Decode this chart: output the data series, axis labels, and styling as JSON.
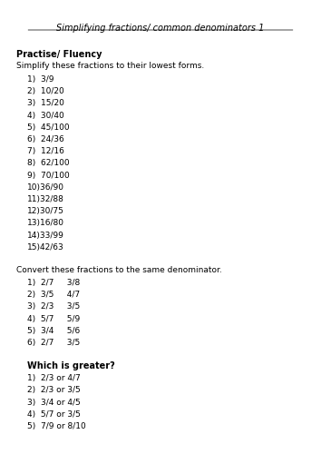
{
  "title": "Simplifying fractions/ common denominators 1",
  "background_color": "#ffffff",
  "section1_header": "Practise/ Fluency",
  "section1_instruction": "Simplify these fractions to their lowest forms.",
  "section1_items": [
    "1)  3/9",
    "2)  10/20",
    "3)  15/20",
    "4)  30/40",
    "5)  45/100",
    "6)  24/36",
    "7)  12/16",
    "8)  62/100",
    "9)  70/100",
    "10)36/90",
    "11)32/88",
    "12)30/75",
    "13)16/80",
    "14)33/99",
    "15)42/63"
  ],
  "section2_instruction": "Convert these fractions to the same denominator.",
  "section2_items": [
    "1)  2/7     3/8",
    "2)  3/5     4/7",
    "3)  2/3     3/5",
    "4)  5/7     5/9",
    "5)  3/4     5/6",
    "6)  2/7     3/5"
  ],
  "section3_header": "Which is greater?",
  "section3_items": [
    "1)  2/3 or 4/7",
    "2)  2/3 or 3/5",
    "3)  3/4 or 4/5",
    "4)  5/7 or 3/5",
    "5)  7/9 or 8/10"
  ],
  "fig_width": 354,
  "fig_height": 500
}
